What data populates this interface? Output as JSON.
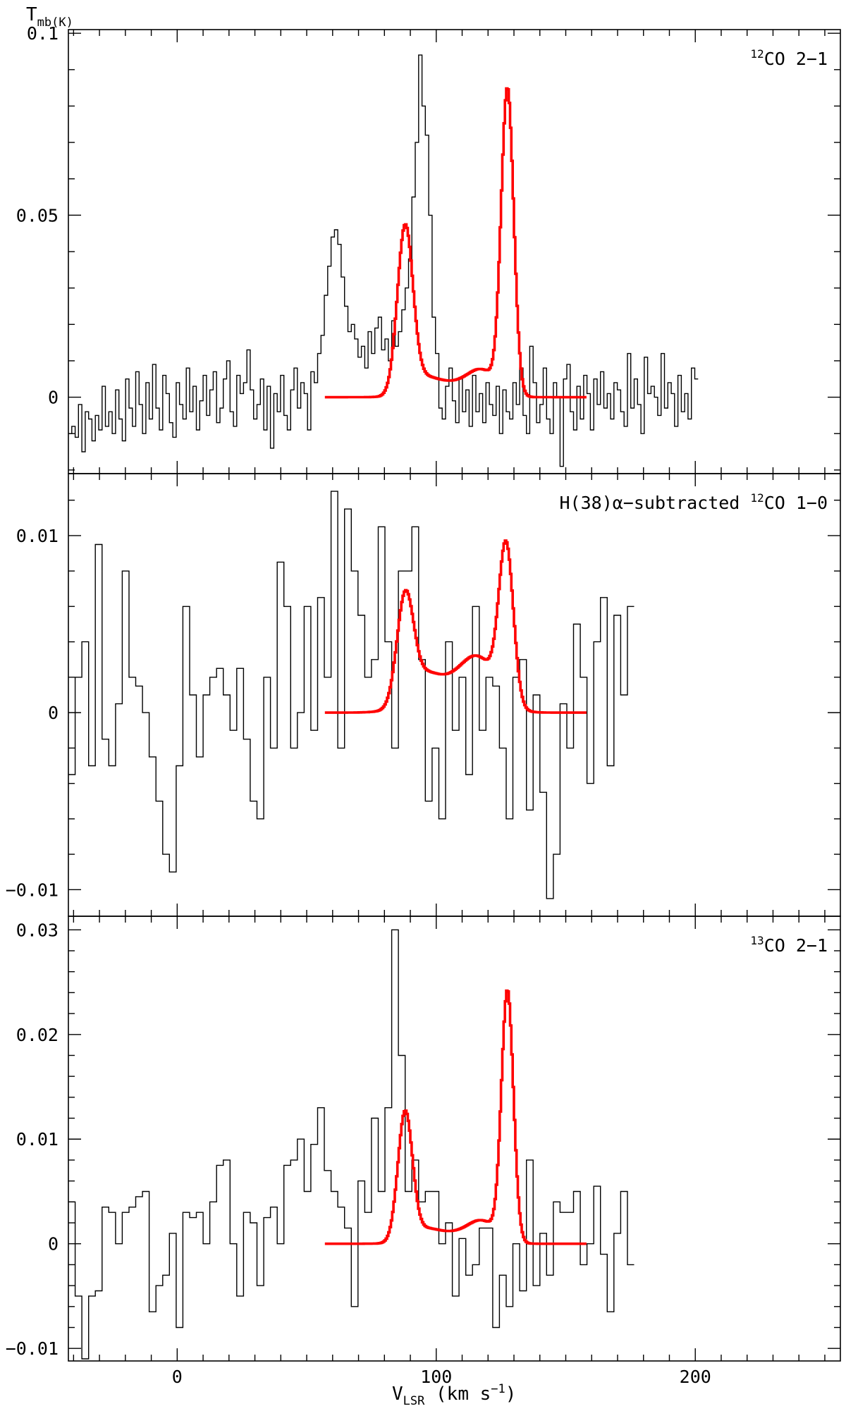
{
  "chart_data": {
    "type": "line",
    "xlabel": "V",
    "xlabel_sub": "LSR",
    "xlabel_unit_pre": " (km s",
    "xlabel_unit_exp": "−1",
    "xlabel_unit_post": ")",
    "ylabel": "T",
    "ylabel_sub": "mb(K)",
    "xlim": [
      -42,
      256
    ],
    "x_ticks": [
      0,
      100,
      200
    ],
    "x_tick_labels": [
      "0",
      "100",
      "200"
    ],
    "fit_color": "#ff0000",
    "spectrum_color": "#000000",
    "panels": [
      {
        "label_sup": "12",
        "label_pre": "",
        "label_rest": "CO 2−1",
        "ylim": [
          -0.021,
          0.101
        ],
        "y_ticks": [
          0,
          0.05,
          0.1
        ],
        "y_tick_labels": [
          "0",
          "0.05",
          "0.1"
        ],
        "spectrum": {
          "x_start": -42,
          "x_step": 1.3,
          "y": [
            -0.01,
            -0.008,
            -0.011,
            -0.002,
            -0.015,
            -0.004,
            -0.006,
            -0.012,
            -0.005,
            -0.009,
            0.003,
            -0.008,
            -0.004,
            -0.01,
            0.002,
            -0.006,
            -0.012,
            0.005,
            -0.003,
            -0.008,
            0.007,
            -0.002,
            -0.01,
            0.004,
            -0.006,
            0.009,
            -0.003,
            -0.009,
            0.006,
            0.001,
            -0.007,
            -0.011,
            0.004,
            -0.002,
            -0.006,
            0.008,
            -0.004,
            0.003,
            -0.009,
            -0.001,
            0.006,
            -0.005,
            0.002,
            0.007,
            -0.007,
            -0.003,
            0.005,
            0.01,
            -0.004,
            -0.008,
            0.006,
            0.001,
            0.004,
            0.013,
            0.002,
            -0.006,
            -0.002,
            0.005,
            -0.009,
            0.003,
            -0.014,
            0.001,
            -0.004,
            0.006,
            -0.005,
            -0.009,
            0.002,
            0.008,
            -0.003,
            0.004,
            0.001,
            -0.009,
            0.007,
            0.004,
            0.012,
            0.017,
            0.028,
            0.036,
            0.044,
            0.046,
            0.042,
            0.033,
            0.025,
            0.018,
            0.02,
            0.016,
            0.011,
            0.014,
            0.008,
            0.018,
            0.012,
            0.019,
            0.022,
            0.013,
            0.016,
            0.01,
            0.021,
            0.014,
            0.018,
            0.024,
            0.03,
            0.038,
            0.055,
            0.07,
            0.094,
            0.08,
            0.072,
            0.05,
            0.022,
            0.012,
            -0.003,
            -0.006,
            0.003,
            0.008,
            -0.001,
            -0.007,
            0.005,
            -0.004,
            0.002,
            -0.008,
            0.006,
            -0.004,
            0.001,
            -0.007,
            0.004,
            -0.002,
            -0.005,
            0.003,
            -0.01,
            0.002,
            -0.004,
            -0.006,
            0.004,
            -0.002,
            0.008,
            -0.005,
            -0.01,
            0.014,
            0.004,
            -0.007,
            -0.002,
            0.008,
            -0.006,
            -0.01,
            0.004,
            0.0,
            -0.019,
            0.005,
            0.009,
            -0.004,
            -0.009,
            0.003,
            -0.006,
            0.006,
            0.001,
            -0.009,
            0.005,
            -0.002,
            0.007,
            -0.003,
            0.001,
            -0.006,
            0.004,
            0.002,
            -0.004,
            -0.008,
            0.012,
            -0.003,
            0.005,
            -0.002,
            -0.01,
            0.011,
            0.001,
            0.003,
            0.0,
            -0.005,
            0.012,
            -0.003,
            0.004,
            0.001,
            -0.008,
            0.006,
            -0.004,
            0.001,
            -0.006,
            0.008,
            0.005
          ]
        },
        "fit": {
          "x_start": 57,
          "x_end": 158,
          "x_step": 0.5,
          "components": [
            {
              "center": 88.0,
              "amplitude": 0.0455,
              "sigma": 3.0
            },
            {
              "center": 127.5,
              "amplitude": 0.0835,
              "sigma": 2.4
            }
          ],
          "bridge": {
            "center": 105.0,
            "amplitude": 0.0038,
            "sigma": 10.0
          },
          "wing_left": {
            "center": 95.0,
            "amplitude": 0.003,
            "sigma": 5.0
          },
          "wing_right": {
            "center": 118.0,
            "amplitude": 0.006,
            "sigma": 5.5
          }
        }
      },
      {
        "label_sup": "12",
        "label_pre": "H(38)α−subtracted ",
        "label_rest": "CO 1−0",
        "ylim": [
          -0.0115,
          0.0135
        ],
        "y_ticks": [
          -0.01,
          0,
          0.01
        ],
        "y_tick_labels": [
          "−0.01",
          "0",
          "0.01"
        ],
        "spectrum": {
          "x_start": -42,
          "x_step": 2.6,
          "y": [
            -0.0035,
            0.002,
            0.004,
            -0.003,
            0.0095,
            -0.0015,
            -0.003,
            0.0005,
            0.008,
            0.002,
            0.0015,
            0.0,
            -0.0025,
            -0.005,
            -0.008,
            -0.009,
            -0.003,
            0.006,
            0.001,
            -0.0025,
            0.001,
            0.002,
            0.0025,
            0.001,
            -0.001,
            0.0025,
            -0.0015,
            -0.005,
            -0.006,
            0.002,
            -0.002,
            0.0085,
            0.006,
            -0.002,
            0.0,
            0.006,
            -0.001,
            0.0065,
            0.002,
            0.0125,
            -0.002,
            0.0115,
            0.008,
            0.0055,
            0.002,
            0.003,
            0.0105,
            0.004,
            -0.002,
            0.008,
            0.008,
            0.0105,
            0.003,
            -0.005,
            -0.002,
            -0.006,
            0.004,
            -0.001,
            0.002,
            -0.0035,
            0.006,
            -0.001,
            0.002,
            0.0015,
            -0.002,
            -0.006,
            0.002,
            0.003,
            -0.0055,
            0.001,
            -0.0045,
            -0.0105,
            -0.008,
            0.0005,
            -0.002,
            0.005,
            0.002,
            -0.004,
            0.004,
            0.0065,
            -0.003,
            0.0055,
            0.001,
            0.006
          ]
        },
        "fit": {
          "x_start": 57,
          "x_end": 158,
          "x_step": 0.5,
          "components": [
            {
              "center": 88.0,
              "amplitude": 0.006,
              "sigma": 3.2
            },
            {
              "center": 127.0,
              "amplitude": 0.0088,
              "sigma": 2.8
            }
          ],
          "bridge": {
            "center": 105.0,
            "amplitude": 0.0017,
            "sigma": 11.0
          },
          "wing_left": {
            "center": 95.0,
            "amplitude": 0.001,
            "sigma": 5.0
          },
          "wing_right": {
            "center": 117.0,
            "amplitude": 0.0022,
            "sigma": 6.5
          }
        }
      },
      {
        "label_sup": "13",
        "label_pre": "",
        "label_rest": "CO 2−1",
        "ylim": [
          -0.0112,
          0.0313
        ],
        "y_ticks": [
          -0.01,
          0,
          0.01,
          0.02,
          0.03
        ],
        "y_tick_labels": [
          "−0.01",
          "0",
          "0.01",
          "0.02",
          "0.03"
        ],
        "spectrum": {
          "x_start": -42,
          "x_step": 2.6,
          "y": [
            0.004,
            -0.005,
            -0.011,
            -0.005,
            -0.0045,
            0.0035,
            0.003,
            0.0,
            0.003,
            0.0035,
            0.0045,
            0.005,
            -0.0065,
            -0.004,
            -0.003,
            0.001,
            -0.008,
            0.003,
            0.0025,
            0.003,
            0.0,
            0.004,
            0.0075,
            0.008,
            0.0,
            -0.005,
            0.003,
            0.002,
            -0.004,
            0.0025,
            0.0035,
            0.0,
            0.0075,
            0.008,
            0.01,
            0.005,
            0.0095,
            0.013,
            0.007,
            0.005,
            0.0035,
            0.0015,
            -0.006,
            0.006,
            0.003,
            0.012,
            0.005,
            0.013,
            0.03,
            0.018,
            0.005,
            0.008,
            0.004,
            0.005,
            0.005,
            0.0,
            0.002,
            -0.005,
            0.0005,
            -0.003,
            -0.002,
            0.0015,
            0.0015,
            -0.008,
            -0.003,
            -0.006,
            0.0,
            -0.0045,
            0.008,
            -0.004,
            0.001,
            -0.003,
            0.004,
            0.003,
            0.003,
            0.005,
            -0.002,
            0.0,
            0.0055,
            -0.001,
            -0.0065,
            0.001,
            0.005,
            -0.002
          ]
        },
        "fit": {
          "x_start": 57,
          "x_end": 158,
          "x_step": 0.5,
          "components": [
            {
              "center": 88.0,
              "amplitude": 0.0122,
              "sigma": 2.8
            },
            {
              "center": 127.5,
              "amplitude": 0.0238,
              "sigma": 2.3
            }
          ],
          "bridge": {
            "center": 105.0,
            "amplitude": 0.001,
            "sigma": 10.0
          },
          "wing_left": {
            "center": 95.0,
            "amplitude": 0.0008,
            "sigma": 5.0
          },
          "wing_right": {
            "center": 118.0,
            "amplitude": 0.0018,
            "sigma": 5.5
          }
        }
      }
    ]
  }
}
